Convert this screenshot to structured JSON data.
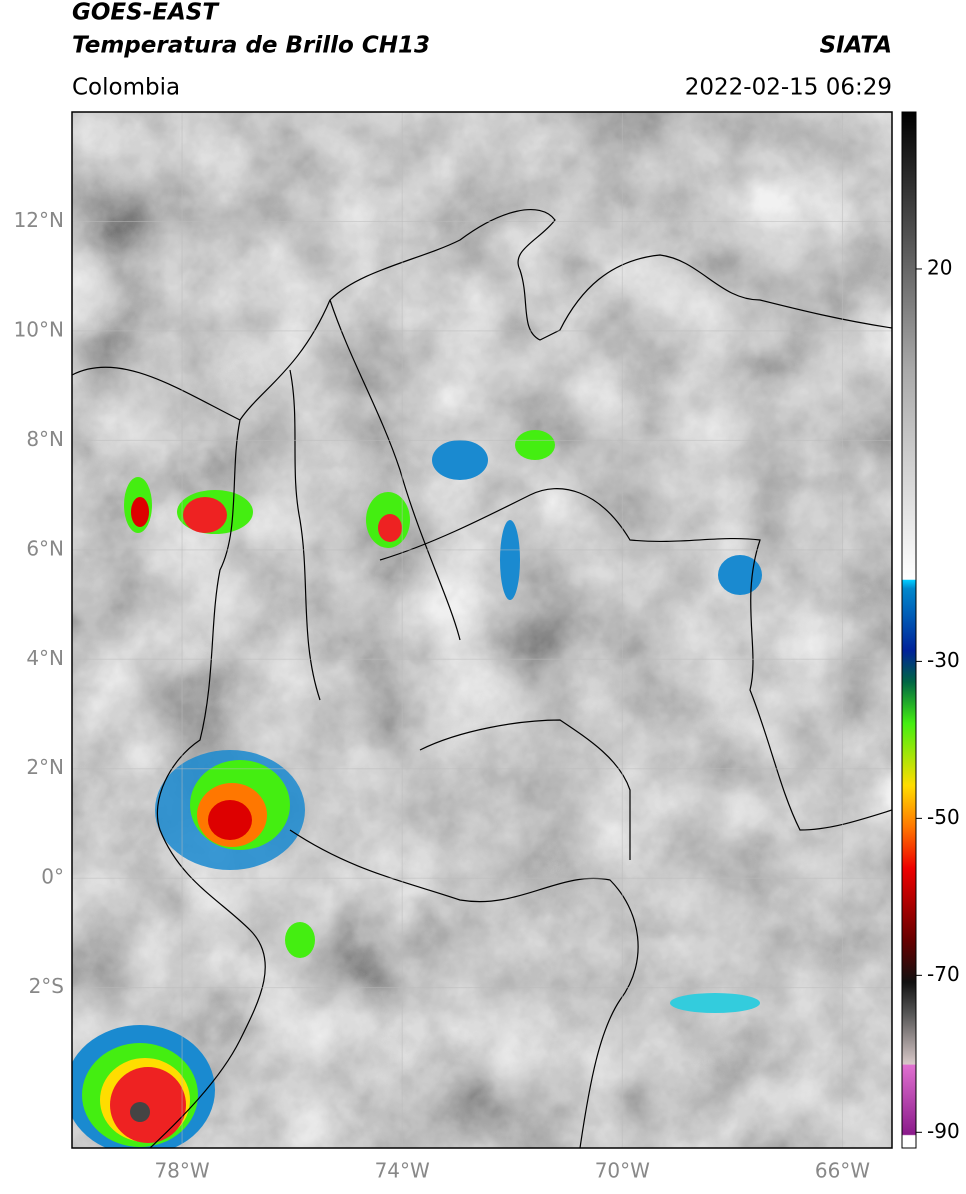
{
  "header": {
    "title_line1": "GOES-EAST",
    "title_line2": "Temperatura de Brillo CH13",
    "source": "SIATA",
    "region": "Colombia",
    "timestamp": "2022-02-15 06:29"
  },
  "map": {
    "lon_lim": [
      -80,
      -65.1
    ],
    "lat_lim": [
      -4.93,
      14
    ],
    "lat_ticks": [
      {
        "value": 12,
        "label": "12°N"
      },
      {
        "value": 10,
        "label": "10°N"
      },
      {
        "value": 8,
        "label": "8°N"
      },
      {
        "value": 6,
        "label": "6°N"
      },
      {
        "value": 4,
        "label": "4°N"
      },
      {
        "value": 2,
        "label": "2°N"
      },
      {
        "value": 0,
        "label": "0°"
      },
      {
        "value": -2,
        "label": "2°S"
      }
    ],
    "lon_ticks": [
      {
        "value": -78,
        "label": "78°W"
      },
      {
        "value": -74,
        "label": "74°W"
      },
      {
        "value": -70,
        "label": "70°W"
      },
      {
        "value": -66,
        "label": "66°W"
      }
    ]
  },
  "colorbar": {
    "lim": [
      -92,
      40
    ],
    "ticks": [
      20,
      -30,
      -50,
      -70,
      -90
    ]
  }
}
